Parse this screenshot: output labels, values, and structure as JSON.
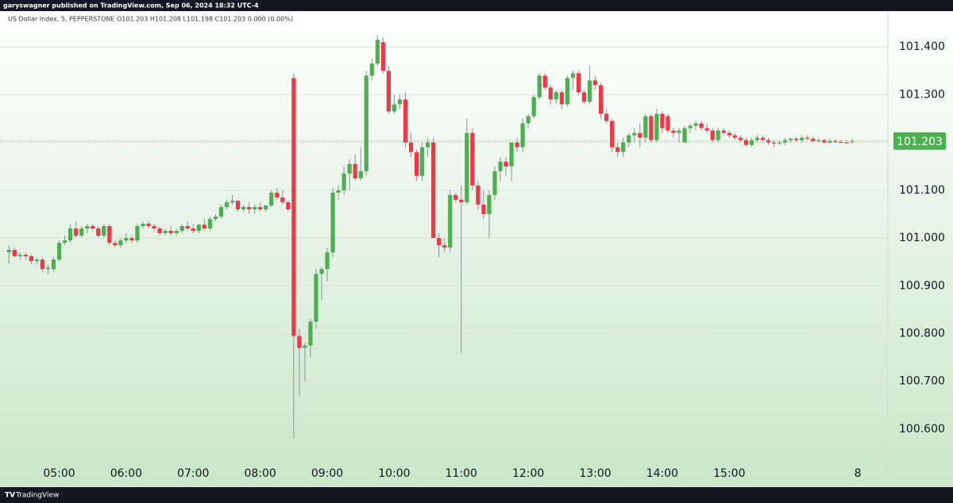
{
  "header": {
    "published": "garyswagner published on TradingView.com, Sep 06, 2024 18:32 UTC-4"
  },
  "footer": {
    "brand": "TradingView"
  },
  "chart_data": {
    "type": "candlestick",
    "title": "US Dollar Index, 5, PEPPERSTONE  O101.203  H101.208  L101.198  C101.203  0.000 (0.00%)",
    "up_color": "#4caf50",
    "down_color": "#f23645",
    "wick_color": "#8a8f98",
    "grid": true,
    "last_price": 101.203,
    "ylim": [
      100.482,
      101.475
    ],
    "yticks": [
      {
        "value": 100.6,
        "label": "100.600"
      },
      {
        "value": 100.7,
        "label": "100.700"
      },
      {
        "value": 100.8,
        "label": "100.800"
      },
      {
        "value": 100.9,
        "label": "100.900"
      },
      {
        "value": 101.0,
        "label": "101.000"
      },
      {
        "value": 101.1,
        "label": "101.100"
      },
      {
        "value": 101.2,
        "label": "101.200"
      },
      {
        "value": 101.3,
        "label": "101.300"
      },
      {
        "value": 101.4,
        "label": "101.400"
      }
    ],
    "xlim": [
      "04:07",
      "17:22"
    ],
    "xticks": [
      "05:00",
      "06:00",
      "07:00",
      "08:00",
      "09:00",
      "10:00",
      "11:00",
      "12:00",
      "13:00",
      "14:00",
      "15:00",
      {
        "value": "16:55",
        "label": "8"
      }
    ],
    "x": [
      "04:15",
      "04:20",
      "04:25",
      "04:30",
      "04:35",
      "04:40",
      "04:45",
      "04:50",
      "04:55",
      "05:00",
      "05:05",
      "05:10",
      "05:15",
      "05:20",
      "05:25",
      "05:30",
      "05:35",
      "05:40",
      "05:45",
      "05:50",
      "05:55",
      "06:00",
      "06:05",
      "06:10",
      "06:15",
      "06:20",
      "06:25",
      "06:30",
      "06:35",
      "06:40",
      "06:45",
      "06:50",
      "06:55",
      "07:00",
      "07:05",
      "07:10",
      "07:15",
      "07:20",
      "07:25",
      "07:30",
      "07:35",
      "07:40",
      "07:45",
      "07:50",
      "07:55",
      "08:00",
      "08:05",
      "08:10",
      "08:15",
      "08:20",
      "08:25",
      "08:30",
      "08:35",
      "08:40",
      "08:45",
      "08:50",
      "08:55",
      "09:00",
      "09:05",
      "09:10",
      "09:15",
      "09:20",
      "09:25",
      "09:30",
      "09:35",
      "09:40",
      "09:45",
      "09:50",
      "09:55",
      "10:00",
      "10:05",
      "10:10",
      "10:15",
      "10:20",
      "10:25",
      "10:30",
      "10:35",
      "10:40",
      "10:45",
      "10:50",
      "10:55",
      "11:00",
      "11:05",
      "11:10",
      "11:15",
      "11:20",
      "11:25",
      "11:30",
      "11:35",
      "11:40",
      "11:45",
      "11:50",
      "11:55",
      "12:00",
      "12:05",
      "12:10",
      "12:15",
      "12:20",
      "12:25",
      "12:30",
      "12:35",
      "12:40",
      "12:45",
      "12:50",
      "12:55",
      "13:00",
      "13:05",
      "13:10",
      "13:15",
      "13:20",
      "13:25",
      "13:30",
      "13:35",
      "13:40",
      "13:45",
      "13:50",
      "13:55",
      "14:00",
      "14:05",
      "14:10",
      "14:15",
      "14:20",
      "14:25",
      "14:30",
      "14:35",
      "14:40",
      "14:45",
      "14:50",
      "14:55",
      "15:00",
      "15:05",
      "15:10",
      "15:15",
      "15:20",
      "15:25",
      "15:30",
      "15:35",
      "15:40",
      "15:45",
      "15:50",
      "15:55",
      "16:00",
      "16:05",
      "16:10",
      "16:15",
      "16:20",
      "16:25",
      "16:30",
      "16:35",
      "16:40",
      "16:45",
      "16:50"
    ],
    "ohlc": [
      [
        100.97,
        100.985,
        100.945,
        100.975
      ],
      [
        100.975,
        100.98,
        100.96,
        100.962
      ],
      [
        100.962,
        100.97,
        100.955,
        100.965
      ],
      [
        100.965,
        100.97,
        100.955,
        100.962
      ],
      [
        100.962,
        100.965,
        100.945,
        100.952
      ],
      [
        100.952,
        100.958,
        100.945,
        100.955
      ],
      [
        100.955,
        100.96,
        100.93,
        100.935
      ],
      [
        100.935,
        100.945,
        100.925,
        100.938
      ],
      [
        100.935,
        100.96,
        100.93,
        100.955
      ],
      [
        100.955,
        100.995,
        100.95,
        100.99
      ],
      [
        100.99,
        101.005,
        100.985,
        100.995
      ],
      [
        100.995,
        101.03,
        100.99,
        101.02
      ],
      [
        101.02,
        101.035,
        101.0,
        101.005
      ],
      [
        101.005,
        101.025,
        101.0,
        101.02
      ],
      [
        101.02,
        101.03,
        101.01,
        101.025
      ],
      [
        101.025,
        101.03,
        101.015,
        101.02
      ],
      [
        101.02,
        101.025,
        101.0,
        101.005
      ],
      [
        101.005,
        101.03,
        101.0,
        101.025
      ],
      [
        101.025,
        101.03,
        100.985,
        100.99
      ],
      [
        100.99,
        100.995,
        100.98,
        100.985
      ],
      [
        100.985,
        101.0,
        100.98,
        100.995
      ],
      [
        100.995,
        101.01,
        100.99,
        101.0
      ],
      [
        101.0,
        101.005,
        100.99,
        100.995
      ],
      [
        100.995,
        101.03,
        100.99,
        101.025
      ],
      [
        101.025,
        101.035,
        101.02,
        101.03
      ],
      [
        101.03,
        101.035,
        101.02,
        101.025
      ],
      [
        101.025,
        101.03,
        101.015,
        101.02
      ],
      [
        101.02,
        101.025,
        101.005,
        101.01
      ],
      [
        101.01,
        101.02,
        101.005,
        101.015
      ],
      [
        101.015,
        101.025,
        101.005,
        101.01
      ],
      [
        101.01,
        101.02,
        101.005,
        101.015
      ],
      [
        101.015,
        101.03,
        101.01,
        101.025
      ],
      [
        101.025,
        101.035,
        101.015,
        101.02
      ],
      [
        101.02,
        101.03,
        101.01,
        101.015
      ],
      [
        101.015,
        101.03,
        101.01,
        101.028
      ],
      [
        101.028,
        101.04,
        101.015,
        101.02
      ],
      [
        101.02,
        101.045,
        101.015,
        101.04
      ],
      [
        101.04,
        101.05,
        101.035,
        101.045
      ],
      [
        101.045,
        101.07,
        101.04,
        101.065
      ],
      [
        101.065,
        101.08,
        101.06,
        101.075
      ],
      [
        101.075,
        101.09,
        101.07,
        101.078
      ],
      [
        101.078,
        101.08,
        101.055,
        101.06
      ],
      [
        101.06,
        101.07,
        101.055,
        101.065
      ],
      [
        101.065,
        101.075,
        101.05,
        101.06
      ],
      [
        101.06,
        101.07,
        101.05,
        101.065
      ],
      [
        101.065,
        101.075,
        101.055,
        101.06
      ],
      [
        101.06,
        101.07,
        101.055,
        101.068
      ],
      [
        101.068,
        101.1,
        101.065,
        101.095
      ],
      [
        101.095,
        101.105,
        101.08,
        101.085
      ],
      [
        101.085,
        101.1,
        101.07,
        101.075
      ],
      [
        101.075,
        101.08,
        101.055,
        101.06
      ],
      [
        101.335,
        101.345,
        100.58,
        100.795
      ],
      [
        100.795,
        100.81,
        100.67,
        100.77
      ],
      [
        100.77,
        100.78,
        100.7,
        100.775
      ],
      [
        100.775,
        100.83,
        100.75,
        100.825
      ],
      [
        100.825,
        100.935,
        100.81,
        100.925
      ],
      [
        100.925,
        100.94,
        100.87,
        100.935
      ],
      [
        100.935,
        100.98,
        100.91,
        100.97
      ],
      [
        100.97,
        101.105,
        100.96,
        101.095
      ],
      [
        101.095,
        101.11,
        101.08,
        101.1
      ],
      [
        101.1,
        101.15,
        101.09,
        101.135
      ],
      [
        101.135,
        101.165,
        101.1,
        101.155
      ],
      [
        101.155,
        101.175,
        101.12,
        101.125
      ],
      [
        101.125,
        101.19,
        101.12,
        101.14
      ],
      [
        101.14,
        101.35,
        101.13,
        101.34
      ],
      [
        101.34,
        101.375,
        101.33,
        101.365
      ],
      [
        101.365,
        101.425,
        101.36,
        101.415
      ],
      [
        101.41,
        101.42,
        101.345,
        101.35
      ],
      [
        101.35,
        101.36,
        101.26,
        101.265
      ],
      [
        101.265,
        101.3,
        101.26,
        101.28
      ],
      [
        101.28,
        101.3,
        101.27,
        101.29
      ],
      [
        101.29,
        101.305,
        101.19,
        101.2
      ],
      [
        101.2,
        101.22,
        101.17,
        101.18
      ],
      [
        101.18,
        101.185,
        101.12,
        101.13
      ],
      [
        101.13,
        101.2,
        101.12,
        101.19
      ],
      [
        101.19,
        101.21,
        101.17,
        101.2
      ],
      [
        101.2,
        101.21,
        101.0,
        101.0
      ],
      [
        101.0,
        101.01,
        100.96,
        100.985
      ],
      [
        100.985,
        101.0,
        100.97,
        100.98
      ],
      [
        100.98,
        101.1,
        100.97,
        101.09
      ],
      [
        101.09,
        101.095,
        101.075,
        101.08
      ],
      [
        101.08,
        101.11,
        100.76,
        101.075
      ],
      [
        101.075,
        101.25,
        101.07,
        101.22
      ],
      [
        101.22,
        101.23,
        101.1,
        101.11
      ],
      [
        101.11,
        101.12,
        101.06,
        101.07
      ],
      [
        101.07,
        101.1,
        101.04,
        101.05
      ],
      [
        101.05,
        101.1,
        101.0,
        101.09
      ],
      [
        101.09,
        101.15,
        101.08,
        101.14
      ],
      [
        101.14,
        101.17,
        101.12,
        101.16
      ],
      [
        101.16,
        101.17,
        101.13,
        101.15
      ],
      [
        101.15,
        101.2,
        101.12,
        101.2
      ],
      [
        101.2,
        101.21,
        101.18,
        101.19
      ],
      [
        101.19,
        101.25,
        101.18,
        101.24
      ],
      [
        101.24,
        101.26,
        101.23,
        101.255
      ],
      [
        101.255,
        101.3,
        101.25,
        101.295
      ],
      [
        101.295,
        101.345,
        101.29,
        101.34
      ],
      [
        101.34,
        101.345,
        101.31,
        101.315
      ],
      [
        101.315,
        101.32,
        101.28,
        101.29
      ],
      [
        101.29,
        101.31,
        101.28,
        101.305
      ],
      [
        101.305,
        101.31,
        101.27,
        101.28
      ],
      [
        101.28,
        101.34,
        101.275,
        101.335
      ],
      [
        101.335,
        101.35,
        101.31,
        101.345
      ],
      [
        101.345,
        101.35,
        101.3,
        101.305
      ],
      [
        101.305,
        101.31,
        101.28,
        101.285
      ],
      [
        101.285,
        101.36,
        101.28,
        101.33
      ],
      [
        101.33,
        101.34,
        101.31,
        101.32
      ],
      [
        101.32,
        101.325,
        101.25,
        101.26
      ],
      [
        101.26,
        101.27,
        101.24,
        101.245
      ],
      [
        101.245,
        101.25,
        101.18,
        101.19
      ],
      [
        101.19,
        101.2,
        101.17,
        101.18
      ],
      [
        101.18,
        101.21,
        101.17,
        101.2
      ],
      [
        101.2,
        101.22,
        101.19,
        101.215
      ],
      [
        101.215,
        101.23,
        101.2,
        101.22
      ],
      [
        101.22,
        101.24,
        101.19,
        101.21
      ],
      [
        101.21,
        101.26,
        101.2,
        101.255
      ],
      [
        101.255,
        101.26,
        101.2,
        101.205
      ],
      [
        101.205,
        101.27,
        101.2,
        101.26
      ],
      [
        101.26,
        101.265,
        101.22,
        101.23
      ],
      [
        101.255,
        101.26,
        101.22,
        101.225
      ],
      [
        101.225,
        101.23,
        101.21,
        101.22
      ],
      [
        101.22,
        101.23,
        101.2,
        101.225
      ],
      [
        101.2,
        101.235,
        101.2,
        101.23
      ],
      [
        101.23,
        101.24,
        101.22,
        101.235
      ],
      [
        101.235,
        101.245,
        101.225,
        101.24
      ],
      [
        101.24,
        101.245,
        101.225,
        101.23
      ],
      [
        101.23,
        101.24,
        101.22,
        101.225
      ],
      [
        101.225,
        101.23,
        101.2,
        101.205
      ],
      [
        101.205,
        101.23,
        101.2,
        101.225
      ],
      [
        101.225,
        101.23,
        101.215,
        101.22
      ],
      [
        101.22,
        101.225,
        101.21,
        101.215
      ],
      [
        101.215,
        101.22,
        101.205,
        101.21
      ],
      [
        101.21,
        101.215,
        101.2,
        101.205
      ],
      [
        101.205,
        101.21,
        101.19,
        101.195
      ],
      [
        101.195,
        101.21,
        101.19,
        101.205
      ],
      [
        101.205,
        101.215,
        101.2,
        101.21
      ],
      [
        101.21,
        101.215,
        101.2,
        101.205
      ],
      [
        101.205,
        101.21,
        101.195,
        101.2
      ],
      [
        101.2,
        101.205,
        101.19,
        101.198
      ],
      [
        101.198,
        101.205,
        101.195,
        101.2
      ],
      [
        101.2,
        101.21,
        101.195,
        101.205
      ],
      [
        101.205,
        101.21,
        101.2,
        101.208
      ],
      [
        101.208,
        101.212,
        101.2,
        101.205
      ],
      [
        101.205,
        101.215,
        101.2,
        101.21
      ],
      [
        101.21,
        101.215,
        101.205,
        101.208
      ],
      [
        101.208,
        101.212,
        101.2,
        101.203
      ],
      [
        101.203,
        101.21,
        101.2,
        101.205
      ],
      [
        101.205,
        101.208,
        101.198,
        101.2
      ],
      [
        101.2,
        101.208,
        101.198,
        101.203
      ],
      [
        101.203,
        101.207,
        101.199,
        101.201
      ],
      [
        101.201,
        101.206,
        101.198,
        101.2
      ],
      [
        101.2,
        101.205,
        101.197,
        101.199
      ],
      [
        101.203,
        101.208,
        101.198,
        101.203
      ]
    ]
  }
}
